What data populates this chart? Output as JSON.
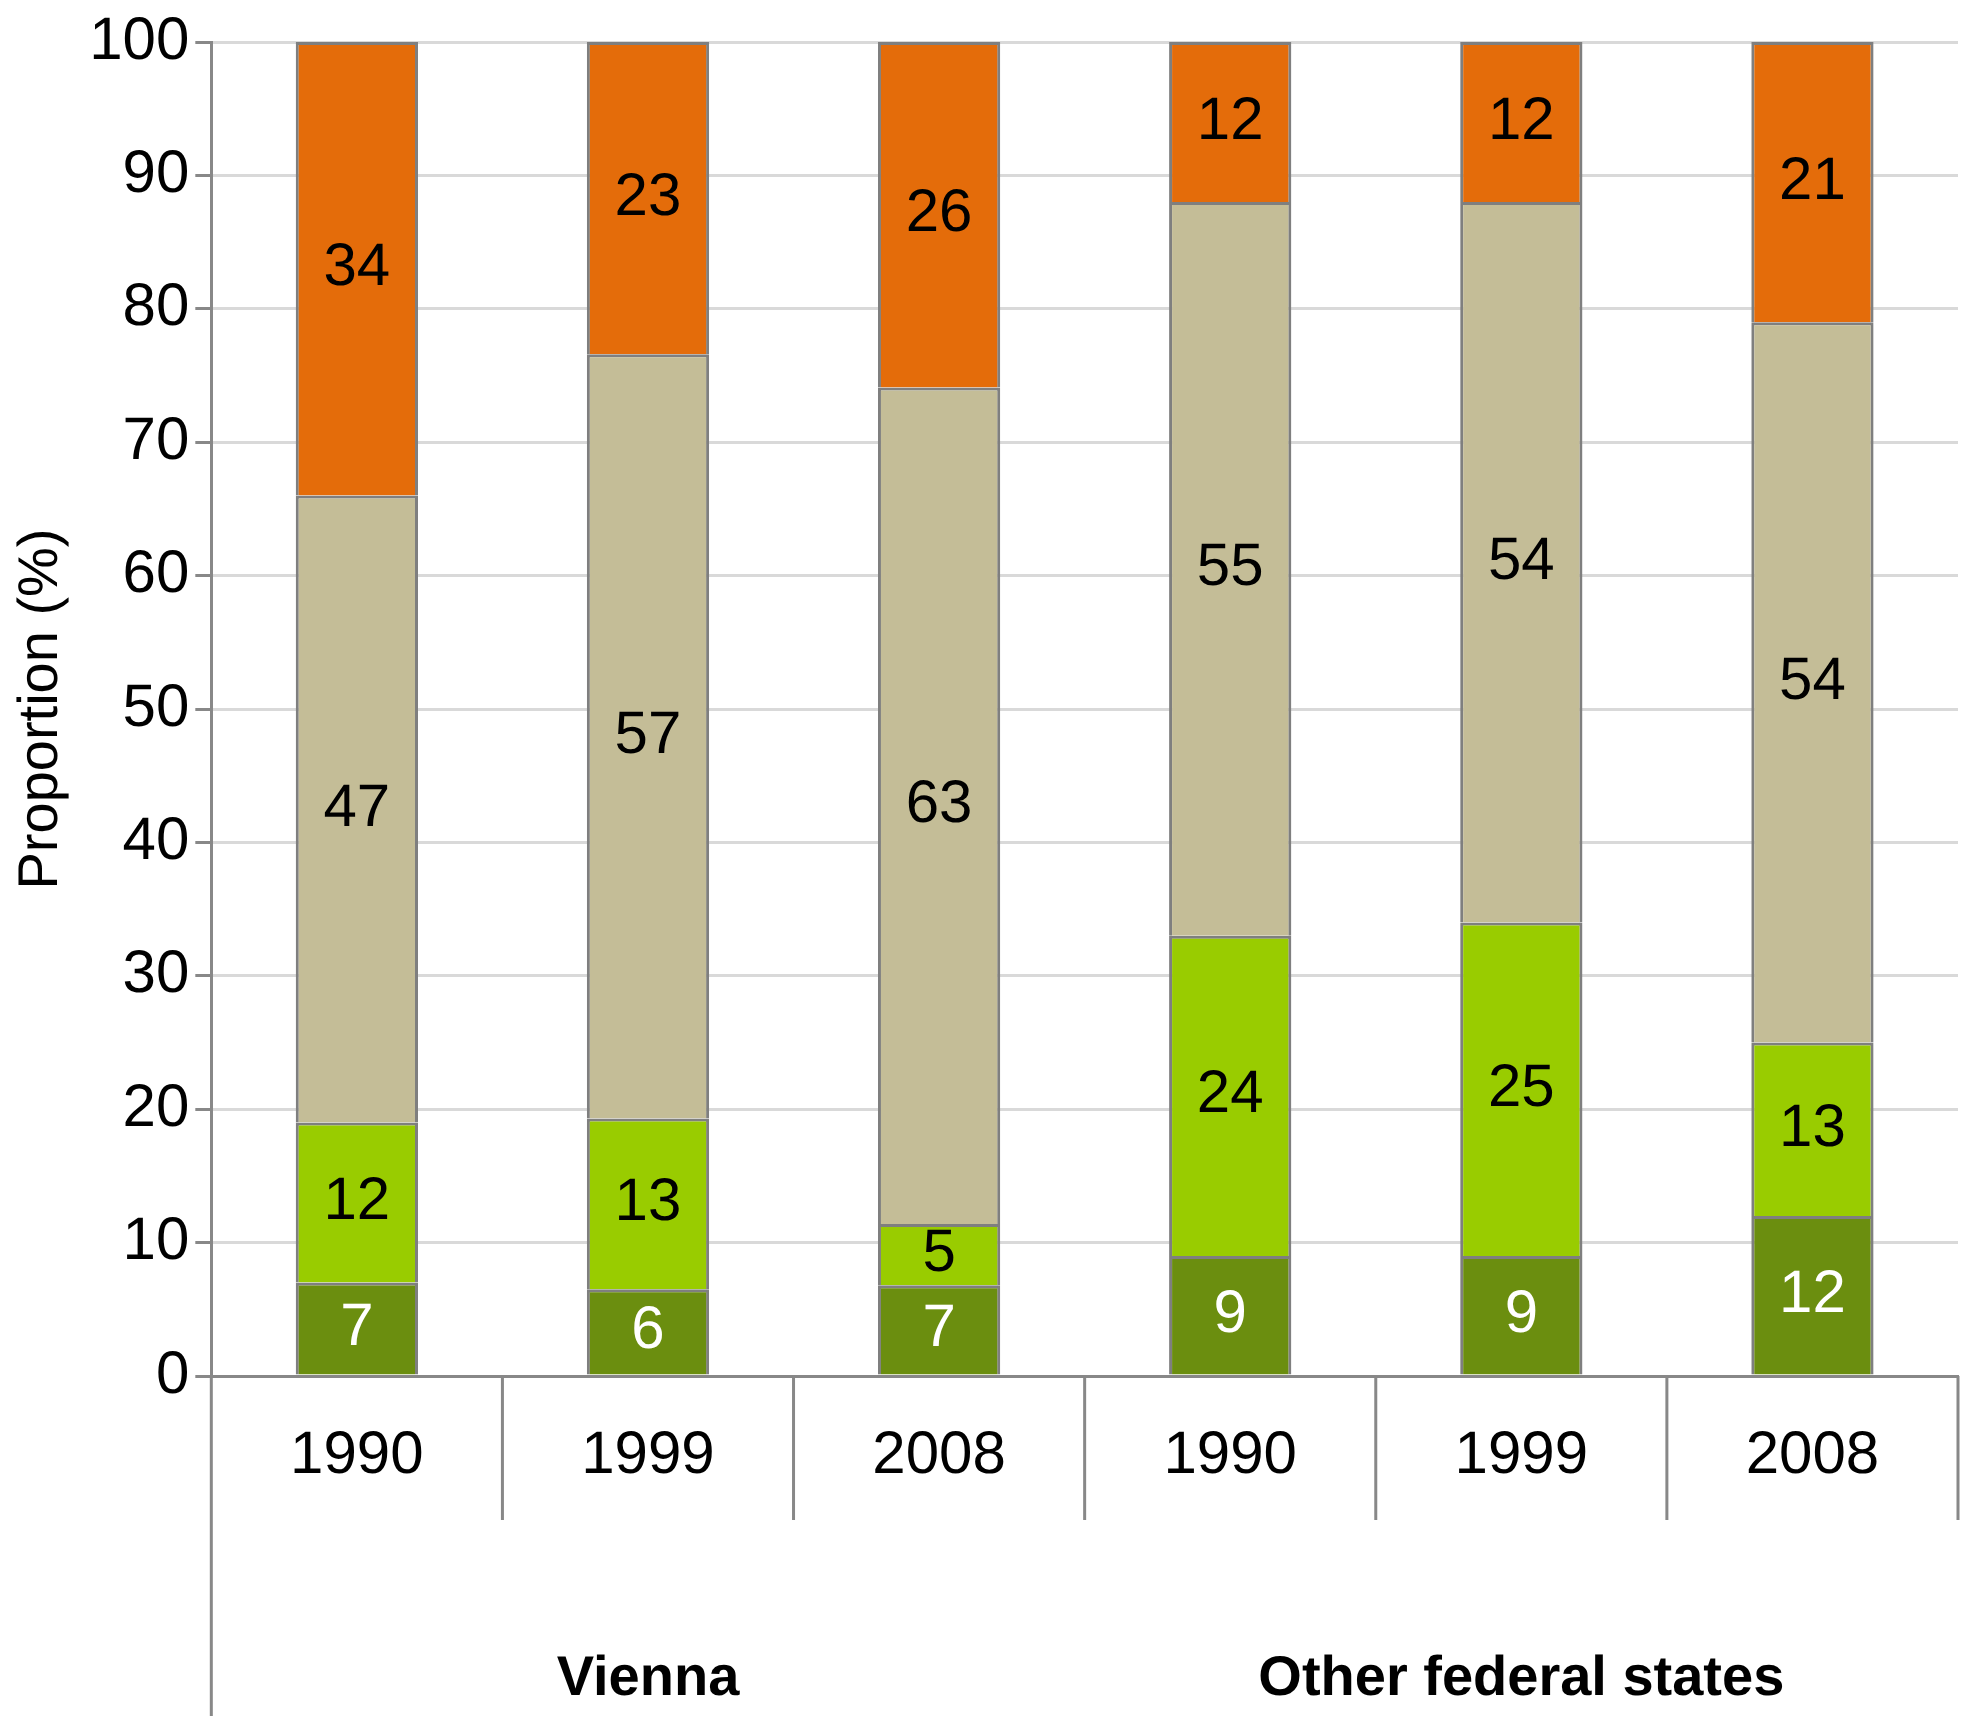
{
  "chart_data": {
    "type": "bar",
    "stacked": true,
    "ylabel": "Proportion (%)",
    "categories": [
      "1990",
      "1999",
      "2008",
      "1990",
      "1999",
      "2008"
    ],
    "series": [
      {
        "color": "#6b8e0f",
        "values": [
          7,
          6.5,
          6.8,
          9,
          9,
          12
        ],
        "value_labels": [
          "7",
          "6",
          "7",
          "9",
          "9",
          "12"
        ]
      },
      {
        "color": "#99cc00",
        "values": [
          12,
          12.8,
          4.6,
          24,
          25,
          13
        ],
        "value_labels": [
          "12",
          "13",
          "5",
          "24",
          "25",
          "13"
        ]
      },
      {
        "color": "#c4bd97",
        "values": [
          47,
          57.3,
          62.7,
          55,
          54,
          54
        ],
        "value_labels": [
          "47",
          "57",
          "63",
          "55",
          "54",
          "54"
        ]
      },
      {
        "color": "#e46c0a",
        "values": [
          34,
          23.4,
          25.9,
          12,
          12,
          21
        ],
        "value_labels": [
          "34",
          "23",
          "26",
          "12",
          "12",
          "21"
        ]
      }
    ],
    "ylim": [
      0,
      100
    ],
    "yticks": [
      0,
      10,
      20,
      30,
      40,
      50,
      60,
      70,
      80,
      90,
      100
    ],
    "grid": "y",
    "legend": false,
    "annotations": [
      "Vienna",
      "Other federal states"
    ]
  }
}
